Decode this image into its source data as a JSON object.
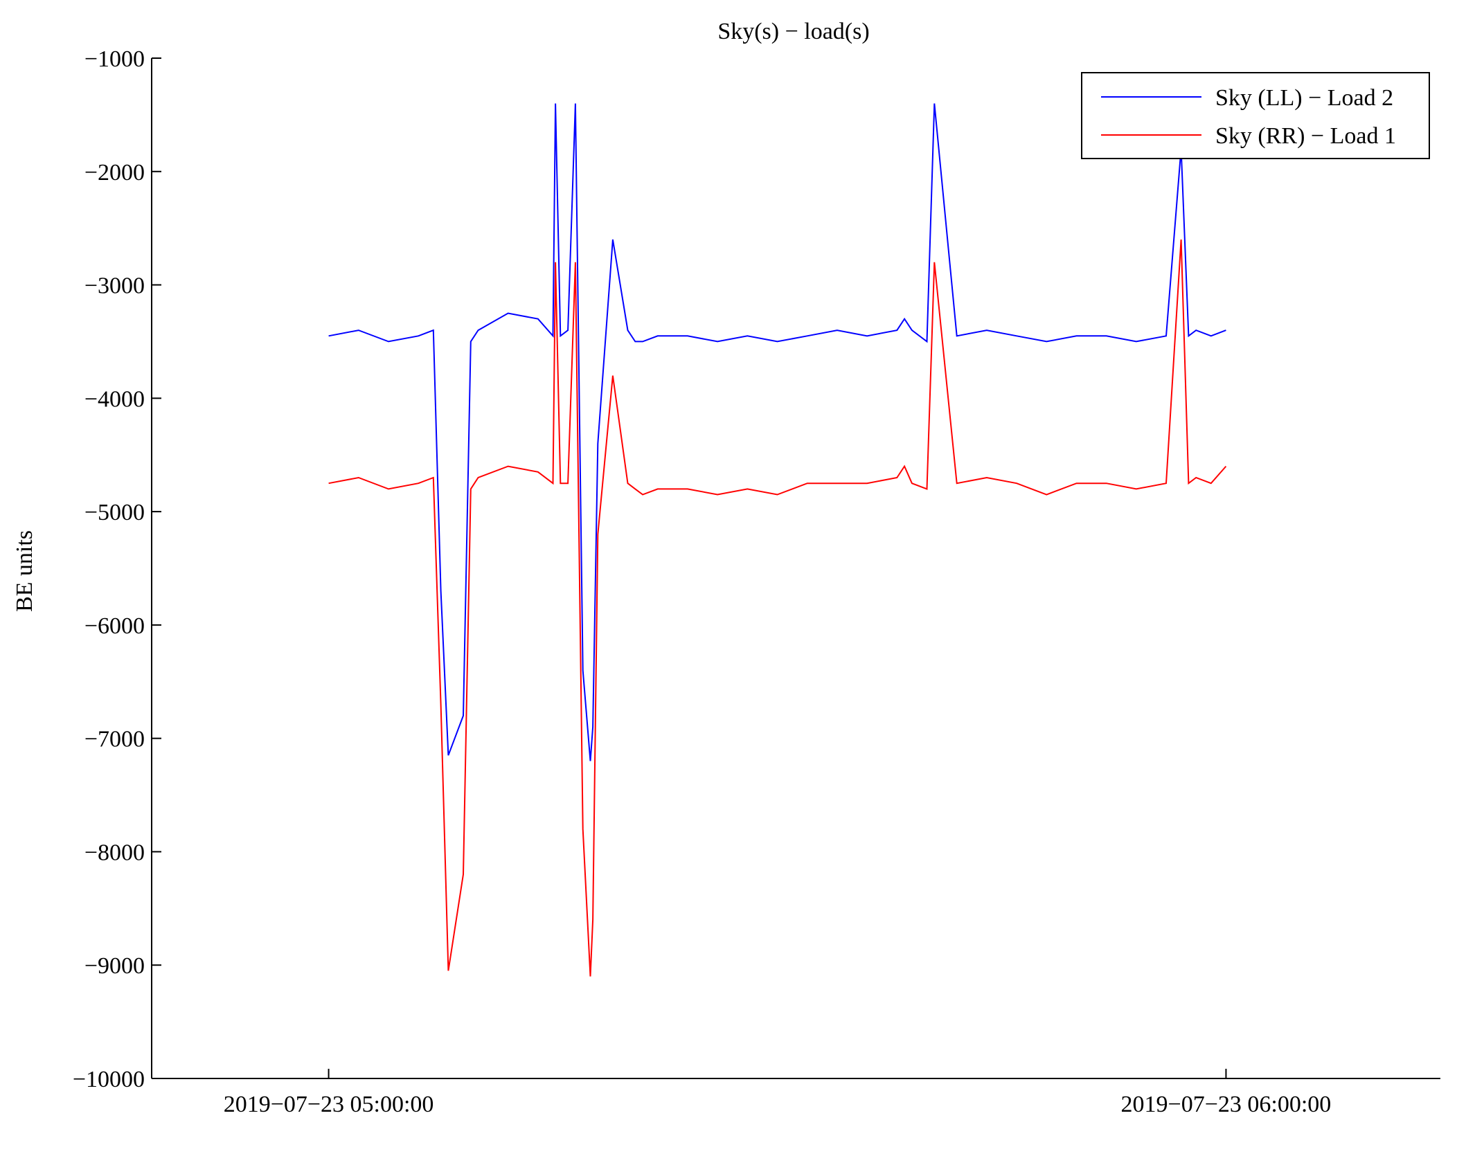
{
  "chart_data": {
    "type": "line",
    "title": "Sky(s) − load(s)",
    "xlabel": "",
    "ylabel": "BE units",
    "ylim": [
      -10000,
      -1000
    ],
    "yticks": [
      -1000,
      -2000,
      -3000,
      -4000,
      -5000,
      -6000,
      -7000,
      -8000,
      -9000,
      -10000
    ],
    "ytick_labels": [
      "−1000",
      "−2000",
      "−3000",
      "−4000",
      "−5000",
      "−6000",
      "−7000",
      "−8000",
      "−9000",
      "−10000"
    ],
    "xlim": [
      "2019-07-23 04:48:10",
      "2019-07-23 06:14:20"
    ],
    "xticks": [
      "2019-07-23 05:00:00",
      "2019-07-23 06:00:00"
    ],
    "xtick_labels": [
      "2019−07−23 05:00:00",
      "2019−07−23 06:00:00"
    ],
    "grid": false,
    "legend_position": "top-right",
    "x_values": [
      "2019-07-23 05:00:00",
      "2019-07-23 05:02:00",
      "2019-07-23 05:04:00",
      "2019-07-23 05:06:00",
      "2019-07-23 05:07:00",
      "2019-07-23 05:07:30",
      "2019-07-23 05:08:00",
      "2019-07-23 05:09:00",
      "2019-07-23 05:09:30",
      "2019-07-23 05:10:00",
      "2019-07-23 05:12:00",
      "2019-07-23 05:14:00",
      "2019-07-23 05:15:00",
      "2019-07-23 05:15:10",
      "2019-07-23 05:15:30",
      "2019-07-23 05:16:00",
      "2019-07-23 05:16:30",
      "2019-07-23 05:17:00",
      "2019-07-23 05:17:30",
      "2019-07-23 05:17:40",
      "2019-07-23 05:18:00",
      "2019-07-23 05:19:00",
      "2019-07-23 05:20:00",
      "2019-07-23 05:20:30",
      "2019-07-23 05:21:00",
      "2019-07-23 05:22:00",
      "2019-07-23 05:24:00",
      "2019-07-23 05:26:00",
      "2019-07-23 05:28:00",
      "2019-07-23 05:30:00",
      "2019-07-23 05:32:00",
      "2019-07-23 05:34:00",
      "2019-07-23 05:36:00",
      "2019-07-23 05:38:00",
      "2019-07-23 05:38:30",
      "2019-07-23 05:39:00",
      "2019-07-23 05:40:00",
      "2019-07-23 05:40:30",
      "2019-07-23 05:42:00",
      "2019-07-23 05:44:00",
      "2019-07-23 05:46:00",
      "2019-07-23 05:48:00",
      "2019-07-23 05:50:00",
      "2019-07-23 05:52:00",
      "2019-07-23 05:54:00",
      "2019-07-23 05:56:00",
      "2019-07-23 05:57:00",
      "2019-07-23 05:57:30",
      "2019-07-23 05:58:00",
      "2019-07-23 05:59:00",
      "2019-07-23 06:00:00"
    ],
    "series": [
      {
        "name": "Sky (LL) − Load 2",
        "color": "#0000ff",
        "values": [
          -3450,
          -3400,
          -3500,
          -3450,
          -3400,
          -5700,
          -7150,
          -6800,
          -3500,
          -3400,
          -3250,
          -3300,
          -3450,
          -1400,
          -3450,
          -3400,
          -1400,
          -6400,
          -7200,
          -6900,
          -4400,
          -2600,
          -3400,
          -3500,
          -3500,
          -3450,
          -3450,
          -3500,
          -3450,
          -3500,
          -3450,
          -3400,
          -3450,
          -3400,
          -3300,
          -3400,
          -3500,
          -1400,
          -3450,
          -3400,
          -3450,
          -3500,
          -3450,
          -3450,
          -3500,
          -3450,
          -1800,
          -3450,
          -3400,
          -3450,
          -3400
        ]
      },
      {
        "name": "Sky (RR) − Load 1",
        "color": "#ff0000",
        "values": [
          -4750,
          -4700,
          -4800,
          -4750,
          -4700,
          -6700,
          -9050,
          -8200,
          -4800,
          -4700,
          -4600,
          -4650,
          -4750,
          -2800,
          -4750,
          -4750,
          -2800,
          -7800,
          -9100,
          -8600,
          -5200,
          -3800,
          -4750,
          -4800,
          -4850,
          -4800,
          -4800,
          -4850,
          -4800,
          -4850,
          -4750,
          -4750,
          -4750,
          -4700,
          -4600,
          -4750,
          -4800,
          -2800,
          -4750,
          -4700,
          -4750,
          -4850,
          -4750,
          -4750,
          -4800,
          -4750,
          -2600,
          -4750,
          -4700,
          -4750,
          -4600
        ]
      }
    ]
  }
}
